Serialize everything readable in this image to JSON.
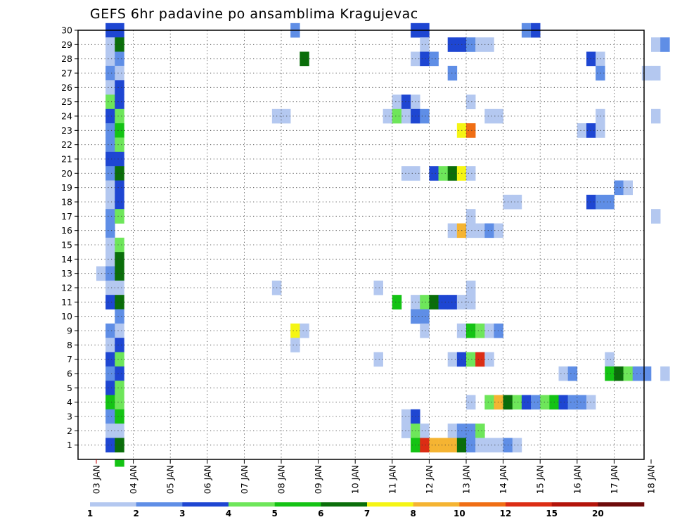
{
  "chart_data": {
    "type": "heatmap",
    "title": "GEFS 6hr padavine po ansamblima Kragujevac",
    "x_tick_labels": [
      "03 JAN",
      "04 JAN",
      "05 JAN",
      "06 JAN",
      "07 JAN",
      "08 JAN",
      "09 JAN",
      "10 JAN",
      "11 JAN",
      "12 JAN",
      "13 JAN",
      "14 JAN",
      "15 JAN",
      "16 JAN",
      "17 JAN",
      "18 JAN"
    ],
    "x_range_days": [
      3,
      18
    ],
    "x_step_hours": 6,
    "y_tick_labels": [
      "1",
      "2",
      "3",
      "4",
      "5",
      "6",
      "7",
      "8",
      "9",
      "10",
      "11",
      "12",
      "13",
      "14",
      "15",
      "16",
      "17",
      "18",
      "19",
      "20",
      "21",
      "22",
      "23",
      "24",
      "25",
      "26",
      "27",
      "28",
      "29",
      "30"
    ],
    "y_range": [
      0,
      30
    ],
    "grid": "dotted",
    "colorbar": {
      "labels": [
        "1",
        "2",
        "3",
        "4",
        "5",
        "6",
        "7",
        "8",
        "10",
        "12",
        "15",
        "20"
      ],
      "colors": [
        "#b4c8f0",
        "#5f8ee6",
        "#1e46d2",
        "#6ee65a",
        "#14c314",
        "#0a6e0a",
        "#f5f514",
        "#f5b432",
        "#f06e14",
        "#dc2d14",
        "#b4140a",
        "#6e0a0a"
      ]
    },
    "cells": [
      [
        30,
        0,
        2
      ],
      [
        30,
        1,
        2
      ],
      [
        30,
        20,
        1
      ],
      [
        30,
        33,
        2
      ],
      [
        30,
        34,
        2
      ],
      [
        30,
        45,
        1
      ],
      [
        30,
        46,
        2
      ],
      [
        29,
        0,
        0
      ],
      [
        29,
        1,
        5
      ],
      [
        29,
        34,
        0
      ],
      [
        29,
        37,
        2
      ],
      [
        29,
        38,
        2
      ],
      [
        29,
        39,
        1
      ],
      [
        29,
        40,
        0
      ],
      [
        29,
        41,
        0
      ],
      [
        29,
        59,
        0
      ],
      [
        29,
        60,
        1
      ],
      [
        28,
        0,
        0
      ],
      [
        28,
        1,
        1
      ],
      [
        28,
        21,
        5
      ],
      [
        28,
        33,
        0
      ],
      [
        28,
        34,
        2
      ],
      [
        28,
        35,
        1
      ],
      [
        28,
        52,
        2
      ],
      [
        28,
        53,
        0
      ],
      [
        27,
        0,
        1
      ],
      [
        27,
        1,
        0
      ],
      [
        27,
        37,
        1
      ],
      [
        27,
        53,
        1
      ],
      [
        27,
        58,
        0
      ],
      [
        27,
        59,
        0
      ],
      [
        26,
        0,
        0
      ],
      [
        26,
        1,
        2
      ],
      [
        25,
        0,
        3
      ],
      [
        25,
        1,
        2
      ],
      [
        25,
        31,
        0
      ],
      [
        25,
        32,
        2
      ],
      [
        25,
        33,
        0
      ],
      [
        25,
        39,
        0
      ],
      [
        24,
        0,
        2
      ],
      [
        24,
        1,
        3
      ],
      [
        24,
        18,
        0
      ],
      [
        24,
        19,
        0
      ],
      [
        24,
        30,
        0
      ],
      [
        24,
        31,
        3
      ],
      [
        24,
        32,
        0
      ],
      [
        24,
        33,
        2
      ],
      [
        24,
        34,
        1
      ],
      [
        24,
        41,
        0
      ],
      [
        24,
        42,
        0
      ],
      [
        24,
        53,
        0
      ],
      [
        24,
        59,
        0
      ],
      [
        23,
        0,
        1
      ],
      [
        23,
        1,
        4
      ],
      [
        23,
        38,
        6
      ],
      [
        23,
        39,
        8
      ],
      [
        23,
        51,
        0
      ],
      [
        23,
        52,
        2
      ],
      [
        23,
        53,
        0
      ],
      [
        22,
        0,
        1
      ],
      [
        22,
        1,
        3
      ],
      [
        21,
        0,
        2
      ],
      [
        21,
        1,
        2
      ],
      [
        20,
        0,
        1
      ],
      [
        20,
        1,
        5
      ],
      [
        20,
        32,
        0
      ],
      [
        20,
        33,
        0
      ],
      [
        20,
        35,
        2
      ],
      [
        20,
        36,
        3
      ],
      [
        20,
        37,
        5
      ],
      [
        20,
        38,
        6
      ],
      [
        20,
        39,
        0
      ],
      [
        19,
        0,
        0
      ],
      [
        19,
        1,
        2
      ],
      [
        19,
        55,
        1
      ],
      [
        19,
        56,
        0
      ],
      [
        18,
        0,
        0
      ],
      [
        18,
        1,
        2
      ],
      [
        18,
        43,
        0
      ],
      [
        18,
        44,
        0
      ],
      [
        18,
        52,
        2
      ],
      [
        18,
        53,
        1
      ],
      [
        18,
        54,
        1
      ],
      [
        17,
        0,
        1
      ],
      [
        17,
        1,
        3
      ],
      [
        17,
        39,
        0
      ],
      [
        17,
        59,
        0
      ],
      [
        16,
        0,
        1
      ],
      [
        16,
        37,
        0
      ],
      [
        16,
        38,
        7
      ],
      [
        16,
        39,
        0
      ],
      [
        16,
        40,
        0
      ],
      [
        16,
        41,
        1
      ],
      [
        16,
        42,
        0
      ],
      [
        15,
        0,
        0
      ],
      [
        15,
        1,
        3
      ],
      [
        14,
        0,
        0
      ],
      [
        14,
        1,
        5
      ],
      [
        13,
        -1,
        0
      ],
      [
        13,
        0,
        1
      ],
      [
        13,
        1,
        5
      ],
      [
        12,
        0,
        0
      ],
      [
        12,
        1,
        0
      ],
      [
        12,
        18,
        0
      ],
      [
        12,
        29,
        0
      ],
      [
        12,
        39,
        0
      ],
      [
        11,
        0,
        2
      ],
      [
        11,
        1,
        5
      ],
      [
        11,
        31,
        4
      ],
      [
        11,
        33,
        0
      ],
      [
        11,
        34,
        3
      ],
      [
        11,
        35,
        5
      ],
      [
        11,
        36,
        2
      ],
      [
        11,
        37,
        2
      ],
      [
        11,
        38,
        0
      ],
      [
        11,
        39,
        0
      ],
      [
        10,
        1,
        1
      ],
      [
        10,
        33,
        1
      ],
      [
        10,
        34,
        1
      ],
      [
        9,
        0,
        1
      ],
      [
        9,
        1,
        0
      ],
      [
        9,
        20,
        6
      ],
      [
        9,
        21,
        0
      ],
      [
        9,
        34,
        0
      ],
      [
        9,
        38,
        0
      ],
      [
        9,
        39,
        4
      ],
      [
        9,
        40,
        3
      ],
      [
        9,
        41,
        0
      ],
      [
        9,
        42,
        1
      ],
      [
        8,
        0,
        0
      ],
      [
        8,
        1,
        2
      ],
      [
        8,
        20,
        0
      ],
      [
        7,
        0,
        2
      ],
      [
        7,
        1,
        3
      ],
      [
        7,
        29,
        0
      ],
      [
        7,
        37,
        0
      ],
      [
        7,
        38,
        2
      ],
      [
        7,
        39,
        3
      ],
      [
        7,
        40,
        9
      ],
      [
        7,
        41,
        0
      ],
      [
        7,
        54,
        0
      ],
      [
        6,
        0,
        1
      ],
      [
        6,
        1,
        2
      ],
      [
        6,
        49,
        0
      ],
      [
        6,
        50,
        1
      ],
      [
        6,
        54,
        4
      ],
      [
        6,
        55,
        5
      ],
      [
        6,
        56,
        3
      ],
      [
        6,
        57,
        1
      ],
      [
        6,
        58,
        1
      ],
      [
        6,
        60,
        0
      ],
      [
        5,
        0,
        2
      ],
      [
        5,
        1,
        3
      ],
      [
        4,
        0,
        4
      ],
      [
        4,
        1,
        3
      ],
      [
        4,
        39,
        0
      ],
      [
        4,
        41,
        3
      ],
      [
        4,
        42,
        7
      ],
      [
        4,
        43,
        5
      ],
      [
        4,
        44,
        3
      ],
      [
        4,
        45,
        2
      ],
      [
        4,
        46,
        1
      ],
      [
        4,
        47,
        3
      ],
      [
        4,
        48,
        4
      ],
      [
        4,
        49,
        2
      ],
      [
        4,
        50,
        1
      ],
      [
        4,
        51,
        1
      ],
      [
        4,
        52,
        0
      ],
      [
        3,
        0,
        1
      ],
      [
        3,
        1,
        4
      ],
      [
        3,
        32,
        0
      ],
      [
        3,
        33,
        2
      ],
      [
        2,
        0,
        0
      ],
      [
        2,
        1,
        0
      ],
      [
        2,
        32,
        0
      ],
      [
        2,
        33,
        3
      ],
      [
        2,
        34,
        0
      ],
      [
        2,
        37,
        0
      ],
      [
        2,
        38,
        1
      ],
      [
        2,
        39,
        1
      ],
      [
        2,
        40,
        3
      ],
      [
        1,
        0,
        2
      ],
      [
        1,
        1,
        5
      ],
      [
        1,
        33,
        4
      ],
      [
        1,
        34,
        9
      ],
      [
        1,
        35,
        7
      ],
      [
        1,
        36,
        7
      ],
      [
        1,
        37,
        7
      ],
      [
        1,
        38,
        5
      ],
      [
        1,
        39,
        1
      ],
      [
        1,
        40,
        0
      ],
      [
        1,
        41,
        0
      ],
      [
        1,
        42,
        0
      ],
      [
        1,
        43,
        1
      ],
      [
        1,
        44,
        0
      ],
      [
        0,
        1,
        4
      ]
    ]
  }
}
